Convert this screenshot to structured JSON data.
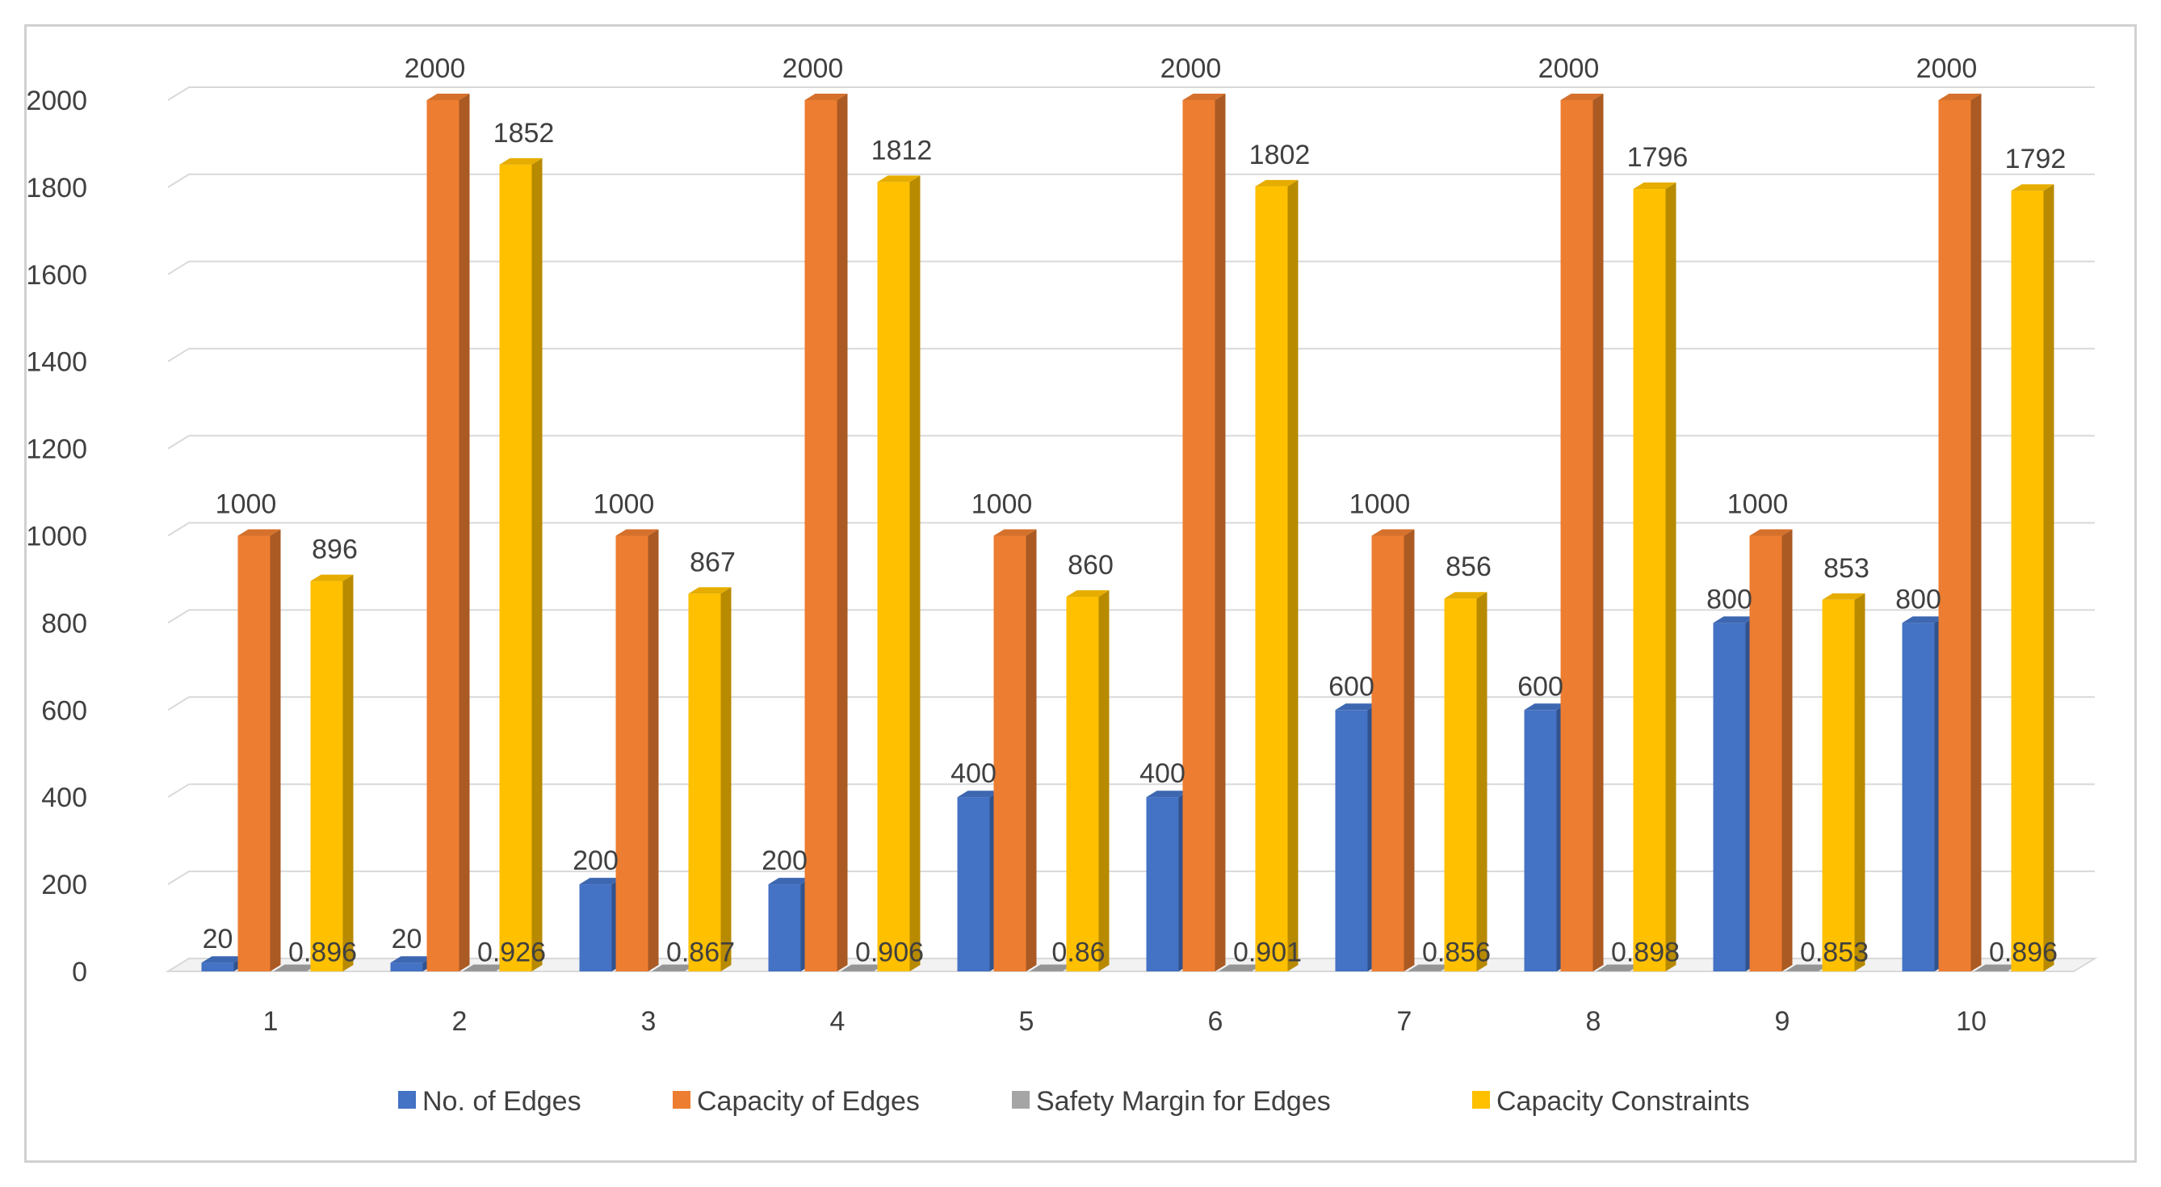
{
  "chart_data": {
    "type": "bar",
    "style": "3d-clustered-column",
    "title": "",
    "xlabel": "",
    "ylabel": "",
    "categories": [
      "1",
      "2",
      "3",
      "4",
      "5",
      "6",
      "7",
      "8",
      "9",
      "10"
    ],
    "ylim": [
      0,
      2000
    ],
    "yticks": [
      0,
      200,
      400,
      600,
      800,
      1000,
      1200,
      1400,
      1600,
      1800,
      2000
    ],
    "grid": true,
    "legend": "bottom",
    "series": [
      {
        "name": "No. of Edges",
        "color": "#4472C4",
        "values": [
          20,
          20,
          200,
          200,
          400,
          400,
          600,
          600,
          800,
          800
        ],
        "labels": [
          "20",
          "20",
          "200",
          "200",
          "400",
          "400",
          "600",
          "600",
          "800",
          "800"
        ]
      },
      {
        "name": "Capacity of Edges",
        "color": "#ED7D31",
        "values": [
          1000,
          2000,
          1000,
          2000,
          1000,
          2000,
          1000,
          2000,
          1000,
          2000
        ],
        "labels": [
          "1000",
          "2000",
          "1000",
          "2000",
          "1000",
          "2000",
          "1000",
          "2000",
          "1000",
          "2000"
        ]
      },
      {
        "name": "Safety Margin for Edges",
        "color": "#A5A5A5",
        "values": [
          0.896,
          0.926,
          0.867,
          0.906,
          0.86,
          0.901,
          0.856,
          0.898,
          0.853,
          0.896
        ],
        "labels": [
          "0.896",
          "0.926",
          "0.867",
          "0.906",
          "0.86",
          "0.901",
          "0.856",
          "0.898",
          "0.853",
          "0.896"
        ]
      },
      {
        "name": "Capacity Constraints",
        "color": "#FFC000",
        "values": [
          896,
          1852,
          867,
          1812,
          860,
          1802,
          856,
          1796,
          853,
          1792
        ],
        "labels": [
          "896",
          "1852",
          "867",
          "1812",
          "860",
          "1802",
          "856",
          "1796",
          "853",
          "1792"
        ]
      }
    ]
  }
}
